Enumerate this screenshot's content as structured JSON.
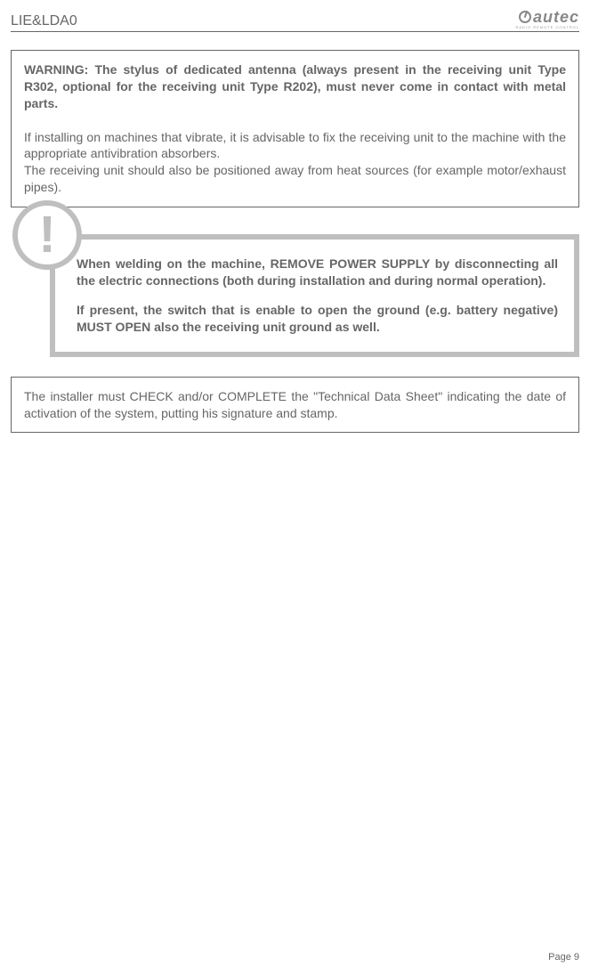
{
  "header": {
    "doc_code": "LIE&LDA0",
    "logo_text": "autec",
    "logo_sub": "RADIO REMOTE CONTROL"
  },
  "box1": {
    "bold_text": "WARNING: The stylus of dedicated antenna (always present in the receiving unit Type R302, optional for the receiving unit Type R202), must never come in contact with metal parts.",
    "para1": "If installing on machines that vibrate, it is advisable to fix the receiving unit to the machine with the appropriate antivibration absorbers.",
    "para2": "The receiving unit should also be positioned away from heat sources (for example motor/exhaust pipes)."
  },
  "warning": {
    "para1": "When welding on the machine, REMOVE POWER SUPPLY by disconnecting all the electric connections (both during installation and during normal operation).",
    "para2": "If present, the switch that is enable to open the ground (e.g. battery negative) MUST OPEN also the receiving unit ground as well."
  },
  "box2": {
    "text": "The installer must CHECK and/or COMPLETE the \"Technical Data Sheet\" indicating the date of activation of the system, putting his signature and stamp."
  },
  "footer": {
    "page_num": "Page 9"
  }
}
